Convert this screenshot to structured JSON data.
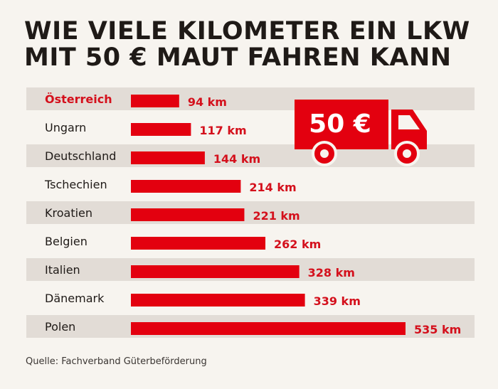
{
  "title_lines": [
    "WIE VIELE KILOMETER EIN LKW",
    "MIT 50 € MAUT FAHREN KANN"
  ],
  "source": "Quelle: Fachverband Güterbeförderung",
  "truck_label": "50 €",
  "colors": {
    "bar": "#e3000f",
    "highlight_text": "#d4101c",
    "label_text": "#1f1a17",
    "row_band": "#e2dcd6",
    "background": "#f7f4ef"
  },
  "chart_data": {
    "type": "bar",
    "orientation": "horizontal",
    "unit": "km",
    "categories": [
      "Österreich",
      "Ungarn",
      "Deutschland",
      "Tschechien",
      "Kroatien",
      "Belgien",
      "Italien",
      "Dänemark",
      "Polen"
    ],
    "values": [
      94,
      117,
      144,
      214,
      221,
      262,
      328,
      339,
      535
    ],
    "value_labels": [
      "94 km",
      "117 km",
      "144 km",
      "214 km",
      "221 km",
      "262 km",
      "328 km",
      "339 km",
      "535 km"
    ],
    "highlighted_category": "Österreich",
    "title": "",
    "xlabel": "",
    "ylabel": "",
    "xlim": [
      0,
      535
    ],
    "grid": false,
    "legend": "none"
  }
}
